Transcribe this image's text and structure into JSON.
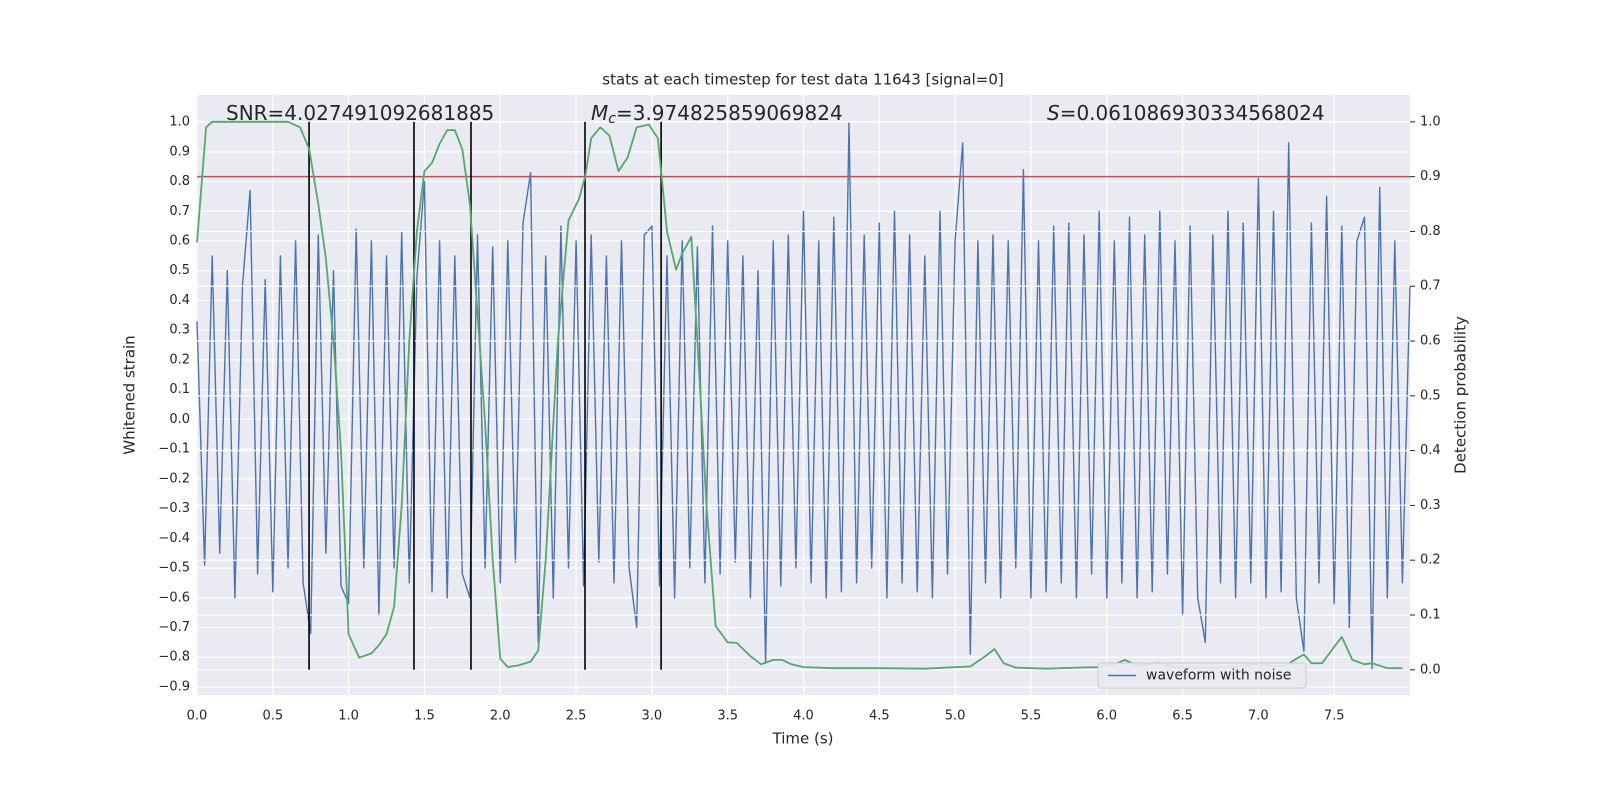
{
  "chart_data": {
    "type": "line",
    "title": "stats at each timestep for test data 11643 [signal=0]",
    "xlabel": "Time (s)",
    "ylabel": "Whitened strain",
    "y2label": "Detection probability",
    "annotations": [
      {
        "text": "SNR=4.027491092681885"
      },
      {
        "symbol": "M",
        "subscript": "c",
        "text": "=3.974825859069824"
      },
      {
        "symbol": "S",
        "text": "=0.061086930334568024"
      }
    ],
    "xlim": [
      0,
      8
    ],
    "ylim": [
      -0.927,
      1.091
    ],
    "y2lim": [
      -0.046,
      1.049
    ],
    "xticks": [
      {
        "value": 0,
        "label": "0.0"
      },
      {
        "value": 0.5,
        "label": "0.5"
      },
      {
        "value": 1,
        "label": "1.0"
      },
      {
        "value": 1.5,
        "label": "1.5"
      },
      {
        "value": 2,
        "label": "2.0"
      },
      {
        "value": 2.5,
        "label": "2.5"
      },
      {
        "value": 3,
        "label": "3.0"
      },
      {
        "value": 3.5,
        "label": "3.5"
      },
      {
        "value": 4,
        "label": "4.0"
      },
      {
        "value": 4.5,
        "label": "4.5"
      },
      {
        "value": 5,
        "label": "5.0"
      },
      {
        "value": 5.5,
        "label": "5.5"
      },
      {
        "value": 6,
        "label": "6.0"
      },
      {
        "value": 6.5,
        "label": "6.5"
      },
      {
        "value": 7,
        "label": "7.0"
      },
      {
        "value": 7.5,
        "label": "7.5"
      }
    ],
    "yticks": [
      {
        "value": -0.9,
        "label": "−0.9"
      },
      {
        "value": -0.8,
        "label": "−0.8"
      },
      {
        "value": -0.7,
        "label": "−0.7"
      },
      {
        "value": -0.6,
        "label": "−0.6"
      },
      {
        "value": -0.5,
        "label": "−0.5"
      },
      {
        "value": -0.4,
        "label": "−0.4"
      },
      {
        "value": -0.3,
        "label": "−0.3"
      },
      {
        "value": -0.2,
        "label": "−0.2"
      },
      {
        "value": -0.1,
        "label": "−0.1"
      },
      {
        "value": 0,
        "label": "0.0"
      },
      {
        "value": 0.1,
        "label": "0.1"
      },
      {
        "value": 0.2,
        "label": "0.2"
      },
      {
        "value": 0.3,
        "label": "0.3"
      },
      {
        "value": 0.4,
        "label": "0.4"
      },
      {
        "value": 0.5,
        "label": "0.5"
      },
      {
        "value": 0.6,
        "label": "0.6"
      },
      {
        "value": 0.7,
        "label": "0.7"
      },
      {
        "value": 0.8,
        "label": "0.8"
      },
      {
        "value": 0.9,
        "label": "0.9"
      },
      {
        "value": 1,
        "label": "1.0"
      }
    ],
    "y2ticks": [
      {
        "value": 0,
        "label": "0.0"
      },
      {
        "value": 0.1,
        "label": "0.1"
      },
      {
        "value": 0.2,
        "label": "0.2"
      },
      {
        "value": 0.3,
        "label": "0.3"
      },
      {
        "value": 0.4,
        "label": "0.4"
      },
      {
        "value": 0.5,
        "label": "0.5"
      },
      {
        "value": 0.6,
        "label": "0.6"
      },
      {
        "value": 0.7,
        "label": "0.7"
      },
      {
        "value": 0.8,
        "label": "0.8"
      },
      {
        "value": 0.9,
        "label": "0.9"
      },
      {
        "value": 1,
        "label": "1.0"
      }
    ],
    "grid": true,
    "legend": "lower right",
    "series": [
      {
        "name": "waveform with noise",
        "color": "#4c72b0",
        "x": [
          0,
          0.05,
          0.1,
          0.15,
          0.2,
          0.25,
          0.3,
          0.35,
          0.4,
          0.45,
          0.5,
          0.55,
          0.6,
          0.65,
          0.7,
          0.75,
          0.8,
          0.85,
          0.9,
          0.95,
          1,
          1.05,
          1.1,
          1.15,
          1.2,
          1.25,
          1.3,
          1.35,
          1.4,
          1.45,
          1.5,
          1.55,
          1.6,
          1.65,
          1.7,
          1.75,
          1.8,
          1.85,
          1.9,
          1.95,
          2,
          2.05,
          2.1,
          2.15,
          2.2,
          2.25,
          2.3,
          2.35,
          2.4,
          2.45,
          2.5,
          2.55,
          2.6,
          2.65,
          2.7,
          2.75,
          2.8,
          2.85,
          2.9,
          2.95,
          3,
          3.05,
          3.1,
          3.15,
          3.2,
          3.25,
          3.3,
          3.35,
          3.4,
          3.45,
          3.5,
          3.55,
          3.6,
          3.65,
          3.7,
          3.75,
          3.8,
          3.85,
          3.9,
          3.95,
          4,
          4.05,
          4.1,
          4.15,
          4.2,
          4.25,
          4.3,
          4.35,
          4.4,
          4.45,
          4.5,
          4.55,
          4.6,
          4.65,
          4.7,
          4.75,
          4.8,
          4.85,
          4.9,
          4.95,
          5,
          5.05,
          5.1,
          5.15,
          5.2,
          5.25,
          5.3,
          5.35,
          5.4,
          5.45,
          5.5,
          5.55,
          5.6,
          5.65,
          5.7,
          5.75,
          5.8,
          5.85,
          5.9,
          5.95,
          6,
          6.05,
          6.1,
          6.15,
          6.2,
          6.25,
          6.3,
          6.35,
          6.4,
          6.45,
          6.5,
          6.55,
          6.6,
          6.65,
          6.7,
          6.75,
          6.8,
          6.85,
          6.9,
          6.95,
          7,
          7.05,
          7.1,
          7.15,
          7.2,
          7.25,
          7.3,
          7.35,
          7.4,
          7.45,
          7.5,
          7.55,
          7.6,
          7.65,
          7.7,
          7.75,
          7.8,
          7.85,
          7.9,
          7.95,
          8
        ],
        "values": [
          0.33,
          -0.49,
          0.55,
          -0.45,
          0.5,
          -0.6,
          0.45,
          0.77,
          -0.52,
          0.47,
          -0.58,
          0.55,
          -0.5,
          0.6,
          -0.55,
          -0.72,
          0.62,
          -0.45,
          0.5,
          -0.56,
          -0.62,
          0.64,
          -0.5,
          0.6,
          -0.66,
          0.55,
          -0.5,
          0.63,
          -0.55,
          0.48,
          0.8,
          -0.58,
          0.6,
          -0.6,
          0.55,
          -0.52,
          -0.6,
          0.62,
          -0.5,
          0.58,
          -0.55,
          0.6,
          -0.48,
          0.66,
          0.83,
          -0.75,
          0.55,
          -0.6,
          0.65,
          -0.5,
          0.6,
          -0.56,
          0.62,
          -0.48,
          0.55,
          -0.55,
          0.6,
          -0.5,
          -0.7,
          0.62,
          0.65,
          -0.56,
          0.55,
          -0.6,
          0.6,
          -0.5,
          0.58,
          -0.55,
          0.65,
          -0.52,
          0.6,
          -0.48,
          0.55,
          -0.6,
          0.5,
          -0.82,
          0.6,
          -0.56,
          0.62,
          -0.5,
          0.7,
          -0.55,
          0.6,
          -0.6,
          0.68,
          -0.58,
          1.0,
          -0.55,
          0.62,
          -0.5,
          0.66,
          -0.6,
          0.7,
          -0.55,
          0.62,
          -0.58,
          0.55,
          -0.6,
          0.7,
          -0.52,
          0.6,
          0.93,
          -0.79,
          0.6,
          -0.55,
          0.62,
          -0.6,
          0.6,
          -0.5,
          0.84,
          -0.6,
          0.6,
          -0.58,
          0.65,
          -0.55,
          0.66,
          -0.6,
          0.62,
          -0.52,
          0.7,
          -0.6,
          0.6,
          -0.55,
          0.68,
          -0.6,
          0.62,
          -0.58,
          0.7,
          -0.52,
          0.6,
          -0.66,
          0.65,
          -0.6,
          -0.75,
          0.62,
          -0.55,
          0.7,
          -0.6,
          0.66,
          -0.55,
          0.81,
          -0.6,
          0.7,
          -0.58,
          0.93,
          -0.6,
          -0.78,
          0.66,
          -0.55,
          0.75,
          -0.62,
          0.65,
          -0.7,
          0.6,
          0.68,
          -0.84,
          0.78,
          -0.6,
          0.6,
          -0.55,
          0.45
        ]
      },
      {
        "color": "#55a868",
        "axis": "y2",
        "x": [
          0,
          0.06,
          0.1,
          0.3,
          0.6,
          0.68,
          0.74,
          0.8,
          0.85,
          0.9,
          0.95,
          1,
          1.07,
          1.15,
          1.2,
          1.25,
          1.3,
          1.35,
          1.4,
          1.45,
          1.5,
          1.55,
          1.6,
          1.65,
          1.7,
          1.75,
          1.8,
          1.85,
          1.9,
          1.95,
          2,
          2.05,
          2.12,
          2.2,
          2.25,
          2.3,
          2.38,
          2.45,
          2.52,
          2.56,
          2.6,
          2.66,
          2.72,
          2.78,
          2.84,
          2.9,
          2.98,
          3.04,
          3.1,
          3.16,
          3.2,
          3.26,
          3.3,
          3.36,
          3.42,
          3.5,
          3.56,
          3.65,
          3.72,
          3.8,
          3.86,
          3.92,
          4,
          4.2,
          4.5,
          4.8,
          5,
          5.1,
          5.2,
          5.26,
          5.32,
          5.4,
          5.6,
          5.8,
          5.95,
          6.05,
          6.12,
          6.2,
          6.35,
          6.45,
          6.7,
          6.9,
          7,
          7.1,
          7.18,
          7.25,
          7.3,
          7.35,
          7.42,
          7.5,
          7.55,
          7.62,
          7.7,
          7.75,
          7.85,
          7.95
        ],
        "values": [
          0.78,
          0.99,
          1.0,
          1.0,
          1.0,
          0.99,
          0.95,
          0.85,
          0.75,
          0.6,
          0.4,
          0.065,
          0.022,
          0.03,
          0.045,
          0.065,
          0.115,
          0.3,
          0.6,
          0.8,
          0.91,
          0.925,
          0.96,
          0.985,
          0.985,
          0.95,
          0.85,
          0.65,
          0.45,
          0.2,
          0.02,
          0.005,
          0.008,
          0.015,
          0.035,
          0.2,
          0.6,
          0.82,
          0.86,
          0.9,
          0.97,
          0.99,
          0.975,
          0.91,
          0.935,
          0.99,
          0.995,
          0.97,
          0.8,
          0.73,
          0.76,
          0.79,
          0.6,
          0.3,
          0.08,
          0.05,
          0.049,
          0.025,
          0.01,
          0.018,
          0.018,
          0.01,
          0.005,
          0.003,
          0.003,
          0.002,
          0.005,
          0.006,
          0.025,
          0.038,
          0.012,
          0.004,
          0.002,
          0.004,
          0.005,
          0.01,
          0.018,
          0.008,
          0.012,
          0.005,
          0.004,
          0.006,
          0.012,
          0.006,
          0.008,
          0.02,
          0.028,
          0.012,
          0.012,
          0.042,
          0.06,
          0.018,
          0.01,
          0.012,
          0.003,
          0.003
        ]
      }
    ],
    "hline": {
      "y2": 0.9,
      "color": "#c44e52"
    },
    "vlines": {
      "x": [
        0.739,
        1.431,
        1.807,
        2.559,
        3.061
      ],
      "y2range": [
        0,
        1
      ],
      "color": "#000000"
    }
  }
}
